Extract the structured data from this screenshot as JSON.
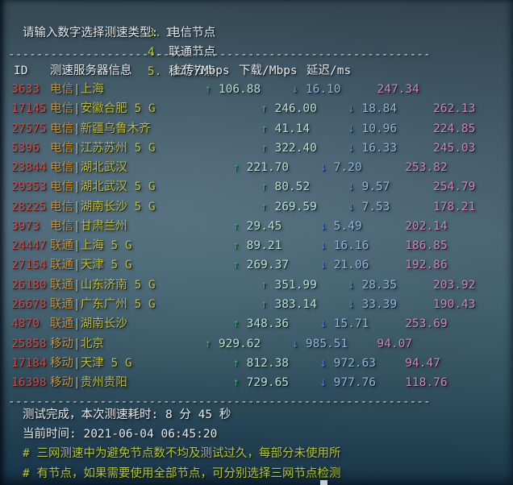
{
  "terminal": {
    "menu": {
      "items": [
        {
          "num": "3.",
          "label": "电信节点"
        },
        {
          "num": "4.",
          "label": "联通节点"
        },
        {
          "num": "5.",
          "label": "移动节点"
        }
      ]
    },
    "prompt": {
      "label": "请输入数字选择测速类型:",
      "value": "1"
    },
    "separator": "------------------------------------------------------------",
    "arrows": {
      "up": "↑",
      "down": "↓"
    },
    "table": {
      "headers": {
        "id": "ID",
        "server": "测速服务器信息",
        "upload": "上传/Mbps",
        "download": "下载/Mbps",
        "latency": "延迟/ms"
      },
      "rows": [
        {
          "id": "3633",
          "isp": "电信",
          "location": "上海",
          "upload": "106.88",
          "download": "16.10",
          "latency": "247.34"
        },
        {
          "id": "17145",
          "isp": "电信",
          "location": "安徽合肥 5 G",
          "upload": "246.00",
          "download": "18.84",
          "latency": "262.13"
        },
        {
          "id": "27575",
          "isp": "电信",
          "location": "新疆乌鲁木齐",
          "upload": "41.14",
          "download": "10.96",
          "latency": "224.85"
        },
        {
          "id": "5396",
          "isp": "电信",
          "location": "江苏苏州 5 G",
          "upload": "322.40",
          "download": "16.33",
          "latency": "245.03"
        },
        {
          "id": "23844",
          "isp": "电信",
          "location": "湖北武汉",
          "upload": "221.70",
          "download": "7.20",
          "latency": "253.82"
        },
        {
          "id": "29353",
          "isp": "电信",
          "location": "湖北武汉 5 G",
          "upload": "80.52",
          "download": "9.57",
          "latency": "254.79"
        },
        {
          "id": "28225",
          "isp": "电信",
          "location": "湖南长沙 5 G",
          "upload": "269.59",
          "download": "7.53",
          "latency": "178.21"
        },
        {
          "id": "3973",
          "isp": "电信",
          "location": "甘肃兰州",
          "upload": "29.45",
          "download": "5.49",
          "latency": "202.14"
        },
        {
          "id": "24447",
          "isp": "联通",
          "location": "上海 5 G",
          "upload": "89.21",
          "download": "16.16",
          "latency": "186.85"
        },
        {
          "id": "27154",
          "isp": "联通",
          "location": "天津 5 G",
          "upload": "269.37",
          "download": "21.06",
          "latency": "192.86"
        },
        {
          "id": "26180",
          "isp": "联通",
          "location": "山东济南 5 G",
          "upload": "351.99",
          "download": "28.35",
          "latency": "203.92"
        },
        {
          "id": "26678",
          "isp": "联通",
          "location": "广东广州 5 G",
          "upload": "383.14",
          "download": "33.39",
          "latency": "190.43"
        },
        {
          "id": "4870",
          "isp": "联通",
          "location": "湖南长沙",
          "upload": "348.36",
          "download": "15.71",
          "latency": "253.69"
        },
        {
          "id": "25858",
          "isp": "移动",
          "location": "北京",
          "upload": "929.62",
          "download": "985.51",
          "latency": "94.07"
        },
        {
          "id": "17184",
          "isp": "移动",
          "location": "天津 5 G",
          "upload": "812.38",
          "download": "972.63",
          "latency": "94.47"
        },
        {
          "id": "16398",
          "isp": "移动",
          "location": "贵州贵阳",
          "upload": "729.65",
          "download": "977.76",
          "latency": "118.76"
        }
      ]
    },
    "footer": {
      "done": "测试完成，本次测速耗时: 8 分 45 秒",
      "time": "当前时间: 2021-06-04 06:45:20",
      "notes": [
        "# 三网测速中为避免节点数不均及测试过久，每部分未使用所",
        "# 有节点，如果需要使用全部节点，可分别选择三网节点检测"
      ]
    },
    "palette": {
      "id_red": "#cf4a41",
      "isp_gold": "#c9943b",
      "location_yellow": "#bdb93e",
      "up_arrow_green": "#3da56e",
      "up_value": "#bcdfcb",
      "down_arrow_blue": "#4a80cf",
      "down_value": "#93b4dc",
      "latency_pink": "#d083bd",
      "menu_num_green": "#b8c53c",
      "note_green": "#b4c437",
      "text_white": "#e6e9e8"
    }
  }
}
